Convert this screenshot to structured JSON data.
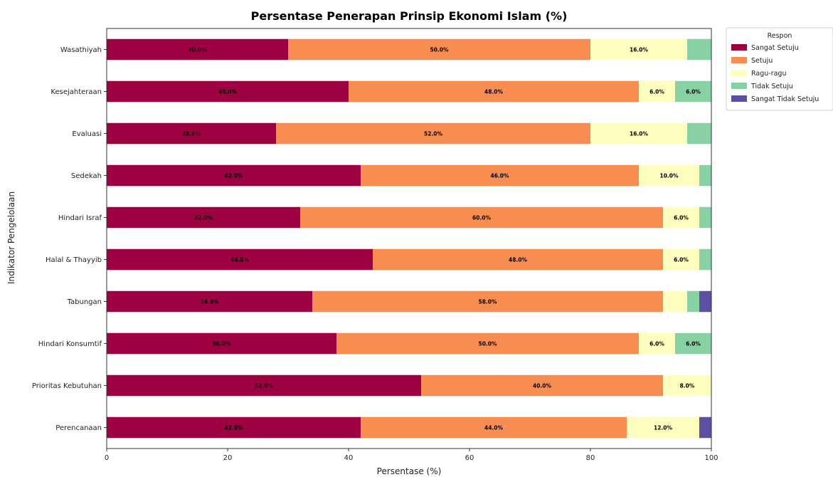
{
  "chart_data": {
    "type": "bar",
    "orientation": "horizontal",
    "stacked": true,
    "title": "Persentase Penerapan Prinsip Ekonomi Islam (%)",
    "xlabel": "Persentase (%)",
    "ylabel": "Indikator Pengelolaan",
    "xlim": [
      0,
      100
    ],
    "xticks": [
      "0",
      "20",
      "40",
      "60",
      "80",
      "100"
    ],
    "grid": false,
    "legend_title": "Respon",
    "legend_position": "outside-top-right",
    "categories": [
      "Wasathiyah",
      "Kesejahteraan",
      "Evaluasi",
      "Sedekah",
      "Hindari Israf",
      "Halal & Thayyib",
      "Tabungan",
      "Hindari Konsumtif",
      "Prioritas Kebutuhan",
      "Perencanaan"
    ],
    "series": [
      {
        "name": "Sangat Setuju",
        "color": "#9e0142",
        "values": [
          30,
          40,
          28,
          42,
          32,
          44,
          34,
          38,
          52,
          42
        ],
        "labels": [
          "30.0%",
          "40.0%",
          "28.0%",
          "42.0%",
          "32.0%",
          "44.0%",
          "34.0%",
          "38.0%",
          "52.0%",
          "42.0%"
        ]
      },
      {
        "name": "Setuju",
        "color": "#f88d52",
        "values": [
          50,
          48,
          52,
          46,
          60,
          48,
          58,
          50,
          40,
          44
        ],
        "labels": [
          "50.0%",
          "48.0%",
          "52.0%",
          "46.0%",
          "60.0%",
          "48.0%",
          "58.0%",
          "50.0%",
          "40.0%",
          "44.0%"
        ]
      },
      {
        "name": "Ragu-ragu",
        "color": "#fefebe",
        "values": [
          16,
          6,
          16,
          10,
          6,
          6,
          4,
          6,
          8,
          12
        ],
        "labels": [
          "16.0%",
          "6.0%",
          "16.0%",
          "10.0%",
          "6.0%",
          "6.0%",
          "",
          "6.0%",
          "8.0%",
          "12.0%"
        ]
      },
      {
        "name": "Tidak Setuju",
        "color": "#88d1a4",
        "values": [
          4,
          6,
          4,
          2,
          2,
          2,
          2,
          6,
          0,
          0
        ],
        "labels": [
          "",
          "6.0%",
          "",
          "",
          "",
          "",
          "",
          "6.0%",
          "",
          ""
        ]
      },
      {
        "name": "Sangat Tidak Setuju",
        "color": "#5e4fa2",
        "values": [
          0,
          0,
          0,
          0,
          0,
          0,
          2,
          0,
          0,
          2
        ],
        "labels": [
          "",
          "",
          "",
          "",
          "",
          "",
          "",
          "",
          "",
          ""
        ]
      }
    ]
  }
}
